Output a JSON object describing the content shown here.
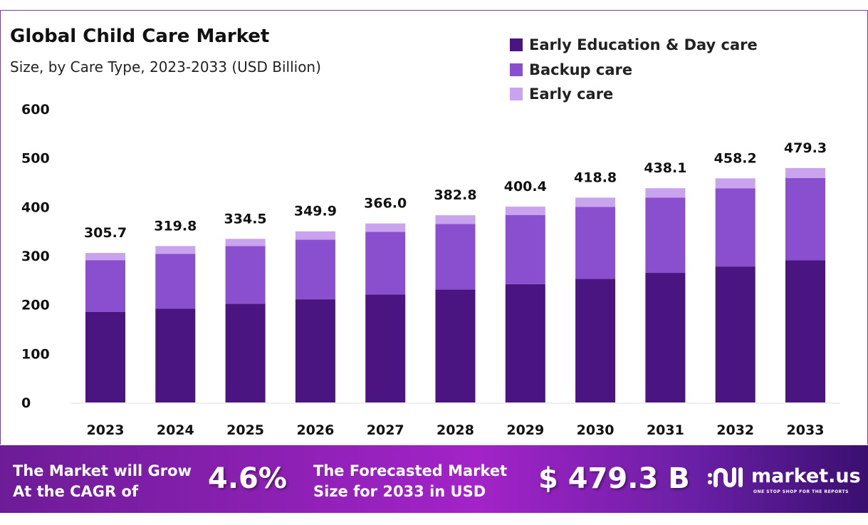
{
  "chart_data": {
    "type": "bar",
    "stacked": true,
    "title": "Global Child Care Market",
    "subtitle": "Size, by Care Type, 2023-2033 (USD Billion)",
    "xlabel": "",
    "ylabel": "",
    "ylim": [
      0,
      600
    ],
    "yticks": [
      0,
      100,
      200,
      300,
      400,
      500,
      600
    ],
    "grid": false,
    "legend_position": "top-right",
    "categories": [
      "2023",
      "2024",
      "2025",
      "2026",
      "2027",
      "2028",
      "2029",
      "2030",
      "2031",
      "2032",
      "2033"
    ],
    "series": [
      {
        "name": "Early Education & Day care",
        "color": "#4a1580",
        "values": [
          185,
          192,
          202,
          211,
          221,
          231,
          242,
          253,
          265,
          278,
          291
        ]
      },
      {
        "name": "Backup care",
        "color": "#8a4fcf",
        "values": [
          106,
          112,
          118,
          122,
          128,
          134,
          141,
          147,
          154,
          160,
          168
        ]
      },
      {
        "name": "Early care",
        "color": "#caa3ef",
        "values": [
          14.7,
          15.8,
          14.5,
          16.9,
          17.0,
          17.8,
          17.4,
          18.8,
          19.1,
          20.2,
          20.3
        ]
      }
    ],
    "totals": [
      "305.7",
      "319.8",
      "334.5",
      "349.9",
      "366.0",
      "382.8",
      "400.4",
      "418.8",
      "438.1",
      "458.2",
      "479.3"
    ]
  },
  "footer": {
    "cagr_label_1": "The Market will Grow",
    "cagr_label_2": "At the CAGR of",
    "cagr_value": "4.6%",
    "forecast_label_1": "The Forecasted Market",
    "forecast_label_2": "Size for 2033 in USD",
    "forecast_value": "$ 479.3 B",
    "brand": "market.us",
    "tagline": "ONE STOP SHOP FOR THE REPORTS"
  }
}
